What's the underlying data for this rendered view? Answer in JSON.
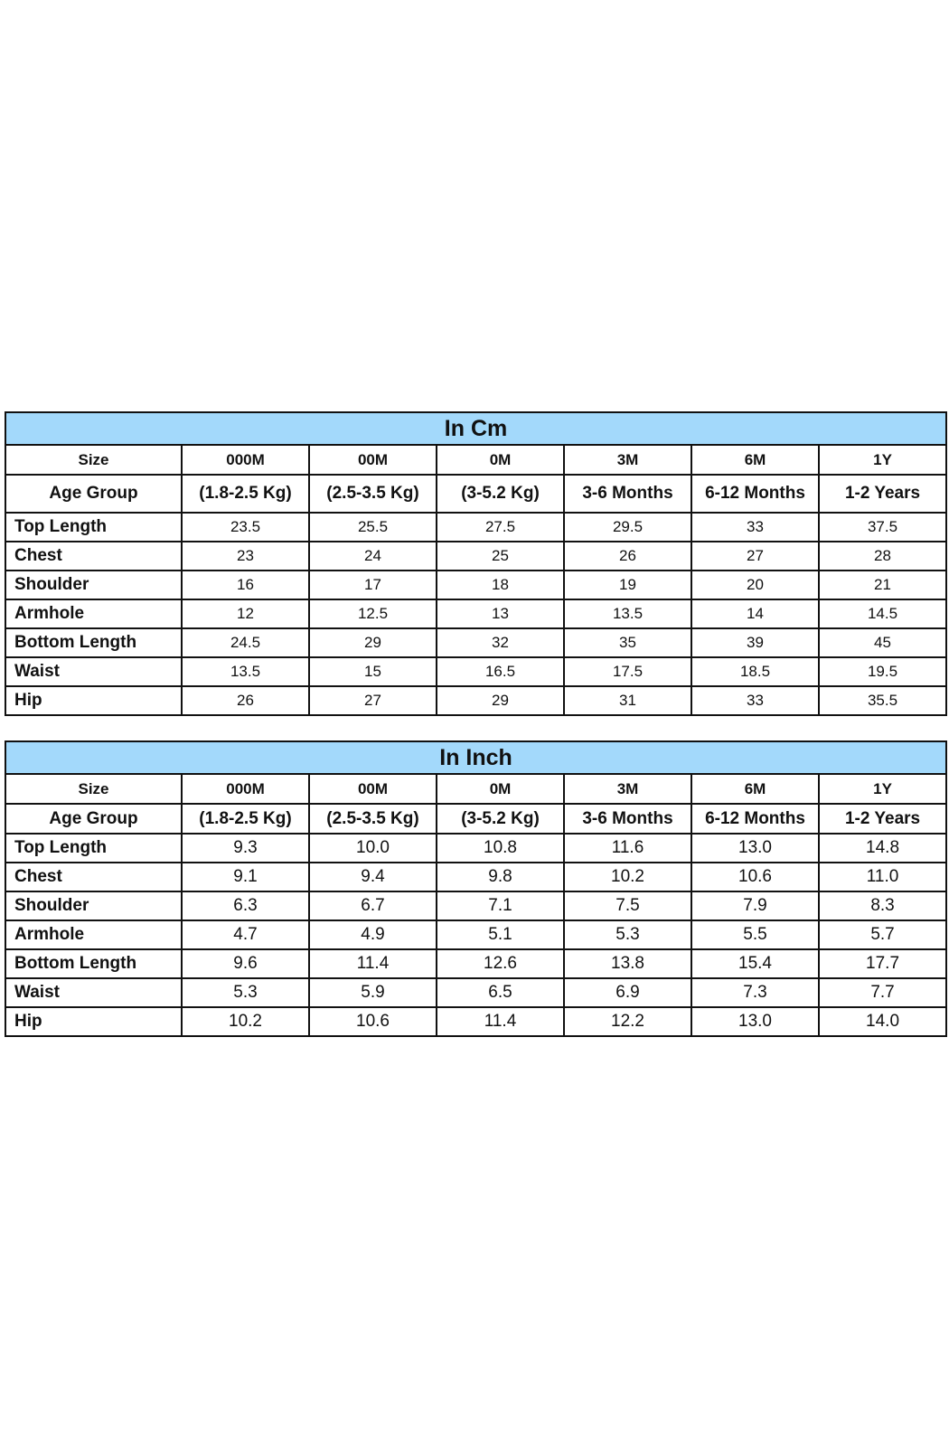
{
  "tables": [
    {
      "title": "In Cm",
      "size_label": "Size",
      "sizes": [
        "000M",
        "00M",
        "0M",
        "3M",
        "6M",
        "1Y"
      ],
      "age_label": "Age Group",
      "ages": [
        "(1.8-2.5 Kg)",
        "(2.5-3.5 Kg)",
        "(3-5.2 Kg)",
        "3-6 Months",
        "6-12 Months",
        "1-2 Years"
      ],
      "rows": [
        {
          "label": "Top Length",
          "values": [
            "23.5",
            "25.5",
            "27.5",
            "29.5",
            "33",
            "37.5"
          ]
        },
        {
          "label": "Chest",
          "values": [
            "23",
            "24",
            "25",
            "26",
            "27",
            "28"
          ]
        },
        {
          "label": "Shoulder",
          "values": [
            "16",
            "17",
            "18",
            "19",
            "20",
            "21"
          ]
        },
        {
          "label": "Armhole",
          "values": [
            "12",
            "12.5",
            "13",
            "13.5",
            "14",
            "14.5"
          ]
        },
        {
          "label": "Bottom Length",
          "values": [
            "24.5",
            "29",
            "32",
            "35",
            "39",
            "45"
          ]
        },
        {
          "label": "Waist",
          "values": [
            "13.5",
            "15",
            "16.5",
            "17.5",
            "18.5",
            "19.5"
          ]
        },
        {
          "label": "Hip",
          "values": [
            "26",
            "27",
            "29",
            "31",
            "33",
            "35.5"
          ]
        }
      ]
    },
    {
      "title": "In Inch",
      "size_label": "Size",
      "sizes": [
        "000M",
        "00M",
        "0M",
        "3M",
        "6M",
        "1Y"
      ],
      "age_label": "Age Group",
      "ages": [
        "(1.8-2.5 Kg)",
        "(2.5-3.5 Kg)",
        "(3-5.2 Kg)",
        "3-6 Months",
        "6-12 Months",
        "1-2 Years"
      ],
      "rows": [
        {
          "label": "Top Length",
          "values": [
            "9.3",
            "10.0",
            "10.8",
            "11.6",
            "13.0",
            "14.8"
          ]
        },
        {
          "label": "Chest",
          "values": [
            "9.1",
            "9.4",
            "9.8",
            "10.2",
            "10.6",
            "11.0"
          ]
        },
        {
          "label": "Shoulder",
          "values": [
            "6.3",
            "6.7",
            "7.1",
            "7.5",
            "7.9",
            "8.3"
          ]
        },
        {
          "label": "Armhole",
          "values": [
            "4.7",
            "4.9",
            "5.1",
            "5.3",
            "5.5",
            "5.7"
          ]
        },
        {
          "label": "Bottom Length",
          "values": [
            "9.6",
            "11.4",
            "12.6",
            "13.8",
            "15.4",
            "17.7"
          ]
        },
        {
          "label": "Waist",
          "values": [
            "5.3",
            "5.9",
            "6.5",
            "6.9",
            "7.3",
            "7.7"
          ]
        },
        {
          "label": "Hip",
          "values": [
            "10.2",
            "10.6",
            "11.4",
            "12.2",
            "13.0",
            "14.0"
          ]
        }
      ]
    }
  ],
  "colors": {
    "header_bg": "#a3d9fb",
    "border": "#111111"
  }
}
